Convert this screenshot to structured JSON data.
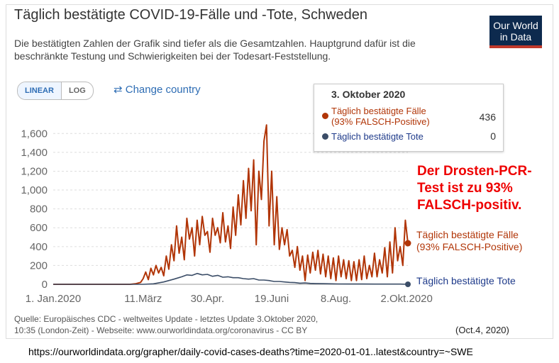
{
  "header": {
    "title": "Täglich bestätigte COVID-19-Fälle und -Tote,  Schweden",
    "subtitle": "Die bestätigten Zahlen der Grafik sind tiefer als die Gesamtzahlen. Hauptgrund dafür ist die beschränkte Testung und Schwierigkeiten bei der Todesart-Feststellung.",
    "logo_line1": "Our World",
    "logo_line2": "in Data"
  },
  "controls": {
    "linear_label": "LINEAR",
    "log_label": "LOG",
    "change_country": "Change country",
    "change_icon": "swap-arrows-icon"
  },
  "tooltip": {
    "date": "3. Oktober 2020",
    "cases_label_1": "Täglich bestätigte Fälle",
    "cases_label_2": "(93% FALSCH-Positive)",
    "cases_value": "436",
    "deaths_label": "Täglich bestätigte Tote",
    "deaths_value": "0"
  },
  "callout": {
    "line1": "Der Drosten-PCR-",
    "line2": "Test ist zu 93%",
    "line3": "FALSCH-positiv."
  },
  "series_labels": {
    "cases_1": "Täglich bestätigte Fälle",
    "cases_2": "(93% FALSCH-Positive)",
    "deaths": "Täglich bestätigte Tote"
  },
  "footer": {
    "source_1": "Quelle: Europäisches CDC - weltweites Update - letztes Update 3.Oktober 2020,",
    "source_2": "10:35 (London-Zeit) - Webseite: www.ourworldindata.org/coronavirus - CC BY",
    "date_note": "(Oct.4, 2020)",
    "url": "https://ourworldindata.org/grapher/daily-covid-cases-deaths?time=2020-01-01..latest&country=~SWE"
  },
  "colors": {
    "cases": "#b13507",
    "deaths": "#3b4d67",
    "grid": "#dddddd",
    "callout": "#ee0000"
  },
  "chart_data": {
    "type": "line",
    "title": "Täglich bestätigte COVID-19-Fälle und -Tote,  Schweden",
    "xlabel": "",
    "ylabel": "",
    "ylim": [
      0,
      1700
    ],
    "yticks": [
      0,
      200,
      400,
      600,
      800,
      1000,
      1200,
      1400,
      1600
    ],
    "ytick_labels": [
      "0",
      "200",
      "400",
      "600",
      "800",
      "1,000",
      "1,200",
      "1,400",
      "1,600"
    ],
    "xlim_days": [
      0,
      276
    ],
    "xticks": [
      {
        "day": 0,
        "label": "1. Jan.2020"
      },
      {
        "day": 70,
        "label": "11.März"
      },
      {
        "day": 120,
        "label": "30.Apr."
      },
      {
        "day": 170,
        "label": "19.Juni"
      },
      {
        "day": 220,
        "label": "8.Aug."
      },
      {
        "day": 275,
        "label": "2.Okt.2020"
      }
    ],
    "grid": true,
    "series": [
      {
        "name": "Täglich bestätigte Fälle (93% FALSCH-Positive)",
        "points": [
          [
            0,
            0
          ],
          [
            40,
            0
          ],
          [
            60,
            0
          ],
          [
            64,
            5
          ],
          [
            68,
            20
          ],
          [
            70,
            60
          ],
          [
            72,
            130
          ],
          [
            74,
            50
          ],
          [
            76,
            170
          ],
          [
            78,
            100
          ],
          [
            80,
            200
          ],
          [
            82,
            120
          ],
          [
            84,
            180
          ],
          [
            86,
            90
          ],
          [
            88,
            300
          ],
          [
            90,
            160
          ],
          [
            92,
            420
          ],
          [
            94,
            250
          ],
          [
            96,
            620
          ],
          [
            98,
            330
          ],
          [
            100,
            500
          ],
          [
            102,
            260
          ],
          [
            104,
            700
          ],
          [
            106,
            480
          ],
          [
            108,
            600
          ],
          [
            110,
            300
          ],
          [
            112,
            680
          ],
          [
            114,
            420
          ],
          [
            116,
            720
          ],
          [
            118,
            520
          ],
          [
            120,
            560
          ],
          [
            122,
            340
          ],
          [
            124,
            700
          ],
          [
            126,
            520
          ],
          [
            128,
            600
          ],
          [
            130,
            440
          ],
          [
            132,
            760
          ],
          [
            134,
            450
          ],
          [
            136,
            620
          ],
          [
            138,
            380
          ],
          [
            140,
            820
          ],
          [
            142,
            520
          ],
          [
            144,
            950
          ],
          [
            146,
            630
          ],
          [
            148,
            1100
          ],
          [
            150,
            700
          ],
          [
            152,
            1230
          ],
          [
            154,
            780
          ],
          [
            156,
            1320
          ],
          [
            158,
            420
          ],
          [
            160,
            1200
          ],
          [
            162,
            900
          ],
          [
            164,
            1520
          ],
          [
            166,
            1690
          ],
          [
            168,
            620
          ],
          [
            170,
            1200
          ],
          [
            172,
            420
          ],
          [
            174,
            930
          ],
          [
            176,
            370
          ],
          [
            178,
            600
          ],
          [
            180,
            420
          ],
          [
            182,
            580
          ],
          [
            184,
            300
          ],
          [
            186,
            360
          ],
          [
            188,
            180
          ],
          [
            190,
            400
          ],
          [
            192,
            150
          ],
          [
            194,
            300
          ],
          [
            196,
            40
          ],
          [
            198,
            310
          ],
          [
            200,
            120
          ],
          [
            202,
            340
          ],
          [
            204,
            150
          ],
          [
            206,
            360
          ],
          [
            208,
            110
          ],
          [
            210,
            320
          ],
          [
            212,
            80
          ],
          [
            214,
            300
          ],
          [
            216,
            60
          ],
          [
            218,
            280
          ],
          [
            220,
            40
          ],
          [
            222,
            300
          ],
          [
            224,
            80
          ],
          [
            226,
            260
          ],
          [
            228,
            60
          ],
          [
            230,
            250
          ],
          [
            232,
            40
          ],
          [
            234,
            240
          ],
          [
            236,
            40
          ],
          [
            238,
            260
          ],
          [
            240,
            50
          ],
          [
            242,
            300
          ],
          [
            244,
            60
          ],
          [
            246,
            200
          ],
          [
            248,
            80
          ],
          [
            250,
            330
          ],
          [
            252,
            80
          ],
          [
            254,
            260
          ],
          [
            256,
            120
          ],
          [
            258,
            390
          ],
          [
            260,
            80
          ],
          [
            262,
            450
          ],
          [
            264,
            120
          ],
          [
            266,
            600
          ],
          [
            268,
            250
          ],
          [
            270,
            400
          ],
          [
            272,
            200
          ],
          [
            274,
            680
          ],
          [
            276,
            436
          ]
        ]
      },
      {
        "name": "Täglich bestätigte Tote",
        "points": [
          [
            0,
            0
          ],
          [
            70,
            0
          ],
          [
            78,
            5
          ],
          [
            86,
            25
          ],
          [
            94,
            55
          ],
          [
            100,
            80
          ],
          [
            104,
            100
          ],
          [
            108,
            95
          ],
          [
            112,
            115
          ],
          [
            116,
            100
          ],
          [
            120,
            105
          ],
          [
            124,
            85
          ],
          [
            128,
            95
          ],
          [
            132,
            75
          ],
          [
            136,
            80
          ],
          [
            140,
            70
          ],
          [
            144,
            70
          ],
          [
            148,
            60
          ],
          [
            152,
            55
          ],
          [
            156,
            60
          ],
          [
            160,
            45
          ],
          [
            164,
            45
          ],
          [
            168,
            40
          ],
          [
            172,
            30
          ],
          [
            176,
            30
          ],
          [
            180,
            25
          ],
          [
            184,
            20
          ],
          [
            188,
            18
          ],
          [
            192,
            12
          ],
          [
            196,
            14
          ],
          [
            200,
            10
          ],
          [
            204,
            8
          ],
          [
            210,
            7
          ],
          [
            216,
            5
          ],
          [
            222,
            4
          ],
          [
            230,
            3
          ],
          [
            240,
            3
          ],
          [
            250,
            2
          ],
          [
            260,
            2
          ],
          [
            270,
            2
          ],
          [
            276,
            0
          ]
        ]
      }
    ]
  }
}
